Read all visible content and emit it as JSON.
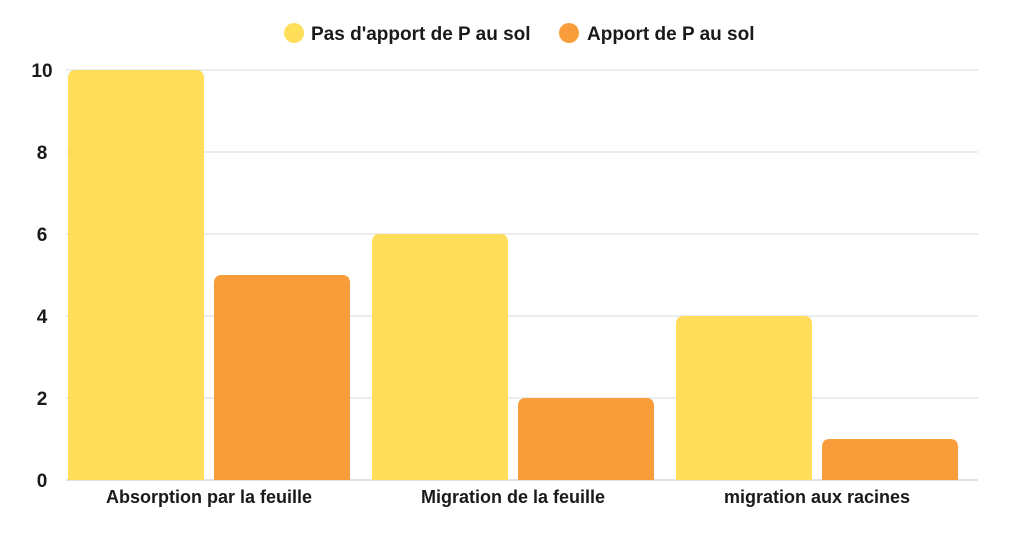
{
  "chart_data": {
    "type": "bar",
    "categories": [
      "Absorption par la feuille",
      "Migration de la feuille",
      "migration aux racines"
    ],
    "series": [
      {
        "name": "Pas d'apport de P au sol",
        "values": [
          10,
          6,
          4
        ],
        "color": "#FFDE59"
      },
      {
        "name": "Apport de P au sol",
        "values": [
          5,
          2,
          1
        ],
        "color": "#F99D3A"
      }
    ],
    "yticks": [
      "0",
      "2",
      "4",
      "6",
      "8",
      "10"
    ],
    "ylim": [
      0,
      10
    ],
    "grid": true,
    "legend_position": "top-center",
    "title": "",
    "xlabel": "",
    "ylabel": ""
  }
}
